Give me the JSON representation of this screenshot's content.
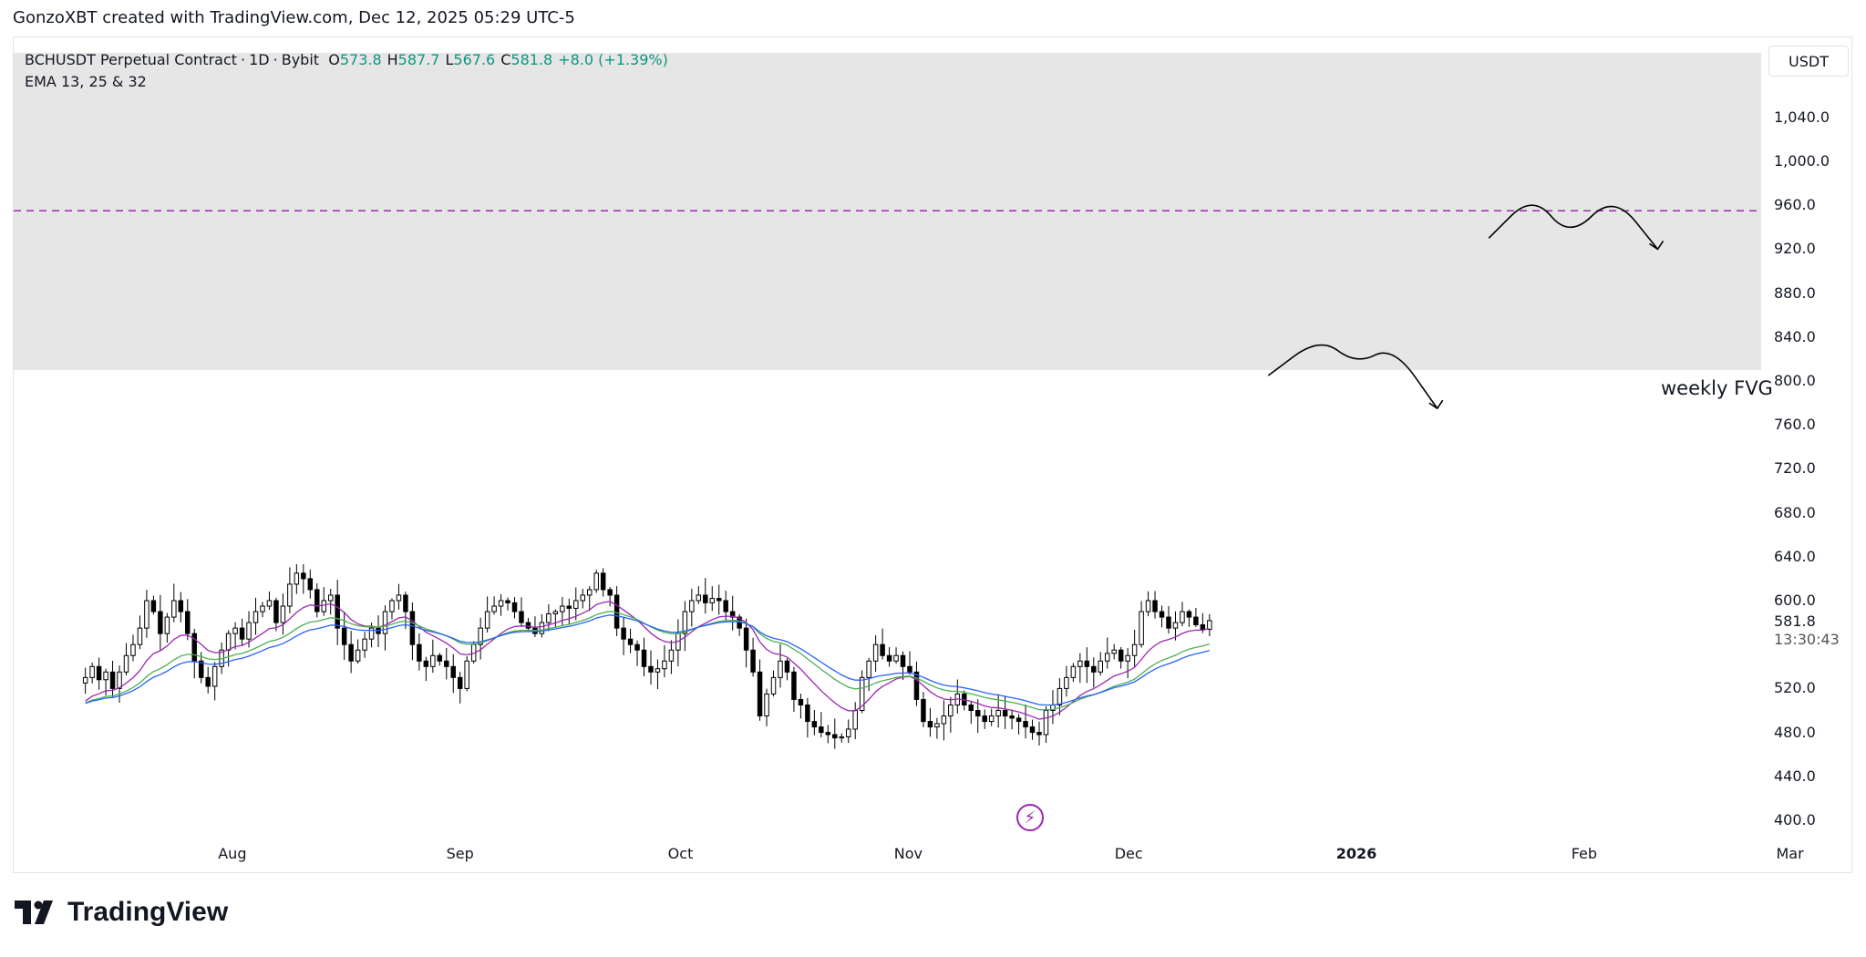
{
  "attribution": "GonzoXBT created with TradingView.com, Dec 12, 2025 05:29 UTC-5",
  "legend": {
    "symbol": "BCHUSDT Perpetual Contract",
    "interval": "1D",
    "exchange": "Bybit",
    "o_label": "O",
    "o": "573.8",
    "h_label": "H",
    "h": "587.7",
    "l_label": "L",
    "l": "567.6",
    "c_label": "C",
    "c": "581.8",
    "change": "+8.0 (+1.39%)",
    "indicator": "EMA 13, 25 & 32"
  },
  "currency": "USDT",
  "last_price": "581.8",
  "countdown": "13:30:43",
  "fvg_label": "weekly FVG",
  "brand": "TradingView",
  "icons": {
    "bolt": "lightning-bolt-icon",
    "logo": "tradingview-logo-icon"
  },
  "colors": {
    "up": "#ffffff",
    "down": "#000000",
    "fvg": "#e6e6e6",
    "ema13": "#9c27b0",
    "ema25": "#4caf50",
    "ema32": "#2962ff",
    "dash": "#9c27b0"
  },
  "chart_data": {
    "type": "candlestick",
    "y_axis": {
      "range": [
        380,
        1080
      ],
      "ticks": [
        "400.0",
        "440.0",
        "480.0",
        "520.0",
        "600.0",
        "640.0",
        "680.0",
        "720.0",
        "760.0",
        "800.0",
        "840.0",
        "880.0",
        "920.0",
        "960.0",
        "1,000.0",
        "1,040.0"
      ]
    },
    "x_axis": {
      "ticks": [
        {
          "label": "Aug",
          "date": "2025-08-01",
          "bold": false
        },
        {
          "label": "Sep",
          "date": "2025-09-01",
          "bold": false
        },
        {
          "label": "Oct",
          "date": "2025-10-01",
          "bold": false
        },
        {
          "label": "Nov",
          "date": "2025-11-01",
          "bold": false
        },
        {
          "label": "Dec",
          "date": "2025-12-01",
          "bold": false
        },
        {
          "label": "2026",
          "date": "2026-01-01",
          "bold": true
        },
        {
          "label": "Feb",
          "date": "2026-02-01",
          "bold": false
        },
        {
          "label": "Mar",
          "date": "2026-03-01",
          "bold": false
        }
      ]
    },
    "candles_start": "2025-07-12",
    "candles_end": "2025-12-12",
    "closes": [
      530,
      540,
      528,
      535,
      520,
      535,
      550,
      560,
      575,
      600,
      590,
      570,
      585,
      600,
      590,
      570,
      545,
      530,
      522,
      540,
      555,
      570,
      575,
      565,
      580,
      590,
      595,
      600,
      580,
      595,
      615,
      625,
      620,
      610,
      590,
      600,
      605,
      575,
      560,
      545,
      555,
      565,
      575,
      570,
      590,
      600,
      605,
      590,
      560,
      545,
      540,
      550,
      545,
      540,
      530,
      520,
      545,
      560,
      575,
      590,
      595,
      600,
      598,
      590,
      580,
      575,
      570,
      580,
      588,
      590,
      595,
      593,
      600,
      605,
      610,
      625,
      610,
      605,
      575,
      565,
      560,
      555,
      540,
      535,
      538,
      545,
      555,
      570,
      590,
      600,
      605,
      598,
      602,
      600,
      590,
      585,
      575,
      555,
      535,
      495,
      515,
      530,
      545,
      535,
      510,
      505,
      490,
      485,
      480,
      478,
      475,
      476,
      483,
      500,
      530,
      545,
      560,
      550,
      545,
      550,
      540,
      535,
      510,
      490,
      485,
      488,
      495,
      505,
      515,
      505,
      500,
      495,
      490,
      495,
      500,
      495,
      493,
      490,
      485,
      480,
      478,
      500,
      505,
      520,
      530,
      540,
      545,
      540,
      535,
      545,
      552,
      555,
      545,
      550,
      560,
      590,
      600,
      590,
      585,
      575,
      580,
      590,
      585,
      578,
      573.8,
      581.8
    ],
    "series": [
      {
        "name": "EMA 13",
        "span": 13
      },
      {
        "name": "EMA 25",
        "span": 25
      },
      {
        "name": "EMA 32",
        "span": 32
      }
    ],
    "fvg_zone": [
      810,
      1100
    ],
    "dashed_level": 955,
    "drawings": [
      {
        "name": "m-pattern-upper",
        "points": [
          [
            "2026-01-19",
            930
          ],
          [
            "2026-01-25",
            970
          ],
          [
            "2026-01-30",
            930
          ],
          [
            "2026-02-05",
            970
          ],
          [
            "2026-02-11",
            920
          ]
        ]
      },
      {
        "name": "m-pattern-lower",
        "points": [
          [
            "2025-12-20",
            805
          ],
          [
            "2025-12-27",
            840
          ],
          [
            "2026-01-01",
            815
          ],
          [
            "2026-01-06",
            832
          ],
          [
            "2026-01-12",
            775
          ]
        ]
      }
    ]
  }
}
